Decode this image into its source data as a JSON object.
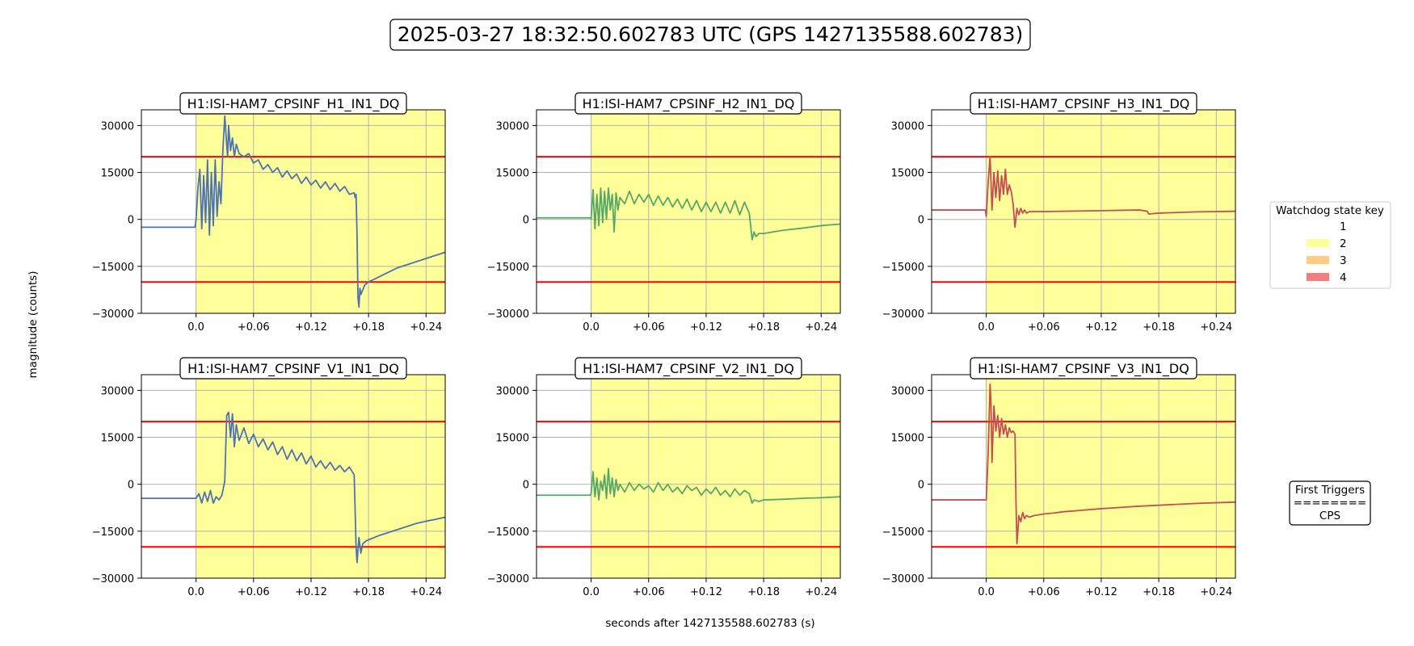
{
  "figure": {
    "title": "2025-03-27 18:32:50.602783 UTC (GPS 1427135588.602783)",
    "xlabel": "seconds after 1427135588.602783 (s)",
    "ylabel": "magnitude (counts)"
  },
  "legend": {
    "title": "Watchdog state key",
    "placement": "right",
    "entries": [
      {
        "label": "1",
        "color": "#ffffff"
      },
      {
        "label": "2",
        "color": "#ffff99"
      },
      {
        "label": "3",
        "color": "#ffcc80"
      },
      {
        "label": "4",
        "color": "#f08080"
      }
    ]
  },
  "first_triggers": {
    "title": "First Triggers",
    "separator": "========",
    "value": "CPS"
  },
  "chart_data": [
    {
      "type": "line",
      "title": "H1:ISI-HAM7_CPSINF_H1_IN1_DQ",
      "color": "#4c72b0",
      "xlim": [
        -0.057,
        0.26
      ],
      "ylim": [
        -30000,
        35000
      ],
      "xticks": [
        0.0,
        0.06,
        0.12,
        0.18,
        0.24
      ],
      "xtick_labels": [
        "0.0",
        "+0.06",
        "+0.12",
        "+0.18",
        "+0.24"
      ],
      "yticks": [
        30000,
        15000,
        0,
        -15000,
        -30000
      ],
      "ytick_labels": [
        "30000",
        "15000",
        "0",
        "−15000",
        "−30000"
      ],
      "thresholds": [
        20000,
        -20000
      ],
      "state_span": {
        "start": 0.0,
        "end": 0.26,
        "state": "2"
      },
      "x": [
        -0.057,
        -0.001,
        0.0,
        0.002,
        0.004,
        0.006,
        0.008,
        0.01,
        0.012,
        0.014,
        0.016,
        0.018,
        0.02,
        0.022,
        0.024,
        0.026,
        0.028,
        0.03,
        0.032,
        0.033,
        0.034,
        0.036,
        0.038,
        0.04,
        0.042,
        0.045,
        0.05,
        0.055,
        0.06,
        0.065,
        0.07,
        0.075,
        0.08,
        0.085,
        0.09,
        0.095,
        0.1,
        0.105,
        0.11,
        0.115,
        0.12,
        0.125,
        0.13,
        0.135,
        0.14,
        0.145,
        0.15,
        0.155,
        0.16,
        0.165,
        0.166,
        0.167,
        0.168,
        0.169,
        0.17,
        0.171,
        0.172,
        0.174,
        0.176,
        0.18,
        0.19,
        0.2,
        0.21,
        0.22,
        0.23,
        0.24,
        0.25,
        0.26
      ],
      "y": [
        -2500,
        -2500,
        0,
        10000,
        16000,
        -3000,
        14000,
        -1000,
        19000,
        -5000,
        15000,
        -2000,
        19000,
        1000,
        12000,
        5000,
        22000,
        33000,
        24000,
        20000,
        30000,
        22000,
        26000,
        20000,
        24000,
        21000,
        20000,
        21000,
        18000,
        19000,
        16000,
        17500,
        15000,
        16500,
        13500,
        15500,
        13000,
        14500,
        11500,
        13500,
        11000,
        12500,
        10000,
        12000,
        9500,
        11500,
        9000,
        10500,
        8000,
        8500,
        7000,
        8000,
        -5000,
        -25000,
        -28000,
        -22000,
        -24000,
        -22500,
        -21000,
        -20000,
        -18500,
        -17000,
        -15500,
        -14500,
        -13500,
        -12500,
        -11500,
        -10500
      ]
    },
    {
      "type": "line",
      "title": "H1:ISI-HAM7_CPSINF_H2_IN1_DQ",
      "color": "#55a868",
      "xlim": [
        -0.057,
        0.26
      ],
      "ylim": [
        -30000,
        35000
      ],
      "xticks": [
        0.0,
        0.06,
        0.12,
        0.18,
        0.24
      ],
      "xtick_labels": [
        "0.0",
        "+0.06",
        "+0.12",
        "+0.18",
        "+0.24"
      ],
      "yticks": [
        30000,
        15000,
        0,
        -15000,
        -30000
      ],
      "ytick_labels": [
        "30000",
        "15000",
        "0",
        "−15000",
        "−30000"
      ],
      "thresholds": [
        20000,
        -20000
      ],
      "state_span": {
        "start": 0.0,
        "end": 0.26,
        "state": "2"
      },
      "x": [
        -0.057,
        -0.001,
        0.0,
        0.002,
        0.004,
        0.006,
        0.008,
        0.01,
        0.012,
        0.014,
        0.016,
        0.018,
        0.02,
        0.022,
        0.024,
        0.026,
        0.028,
        0.03,
        0.035,
        0.04,
        0.045,
        0.05,
        0.055,
        0.06,
        0.065,
        0.07,
        0.075,
        0.08,
        0.085,
        0.09,
        0.095,
        0.1,
        0.105,
        0.11,
        0.115,
        0.12,
        0.125,
        0.13,
        0.135,
        0.14,
        0.145,
        0.15,
        0.155,
        0.16,
        0.165,
        0.168,
        0.17,
        0.172,
        0.175,
        0.18,
        0.2,
        0.22,
        0.24,
        0.26
      ],
      "y": [
        500,
        500,
        200,
        9500,
        -3000,
        8000,
        -2000,
        10000,
        -1000,
        9000,
        0,
        10000,
        3000,
        8000,
        -4000,
        8500,
        3000,
        7000,
        5000,
        9000,
        5000,
        8000,
        5500,
        8000,
        4500,
        7500,
        4500,
        7000,
        4000,
        6500,
        3500,
        6500,
        3000,
        6000,
        2500,
        5500,
        2500,
        5500,
        2000,
        5500,
        2000,
        6000,
        1500,
        5500,
        2000,
        -6500,
        -4000,
        -5500,
        -4500,
        -4500,
        -3500,
        -2800,
        -2000,
        -1500
      ]
    },
    {
      "type": "line",
      "title": "H1:ISI-HAM7_CPSINF_H3_IN1_DQ",
      "color": "#c44e52",
      "xlim": [
        -0.057,
        0.26
      ],
      "ylim": [
        -30000,
        35000
      ],
      "xticks": [
        0.0,
        0.06,
        0.12,
        0.18,
        0.24
      ],
      "xtick_labels": [
        "0.0",
        "+0.06",
        "+0.12",
        "+0.18",
        "+0.24"
      ],
      "yticks": [
        30000,
        15000,
        0,
        -15000,
        -30000
      ],
      "ytick_labels": [
        "30000",
        "15000",
        "0",
        "−15000",
        "−30000"
      ],
      "thresholds": [
        20000,
        -20000
      ],
      "state_span": {
        "start": 0.0,
        "end": 0.26,
        "state": "2"
      },
      "x": [
        -0.057,
        -0.001,
        0.0,
        0.002,
        0.004,
        0.006,
        0.008,
        0.01,
        0.012,
        0.014,
        0.016,
        0.018,
        0.02,
        0.022,
        0.024,
        0.026,
        0.028,
        0.03,
        0.032,
        0.034,
        0.036,
        0.038,
        0.04,
        0.042,
        0.045,
        0.05,
        0.06,
        0.08,
        0.1,
        0.12,
        0.14,
        0.16,
        0.168,
        0.169,
        0.17,
        0.172,
        0.18,
        0.2,
        0.22,
        0.24,
        0.26
      ],
      "y": [
        3000,
        3000,
        1000,
        12000,
        20000,
        3000,
        15000,
        7000,
        15500,
        6000,
        14000,
        8000,
        16000,
        8000,
        11000,
        9000,
        5000,
        -2500,
        3500,
        1500,
        3500,
        2000,
        3000,
        2000,
        2500,
        2500,
        2500,
        2600,
        2700,
        2800,
        2900,
        3000,
        2600,
        2000,
        1700,
        1800,
        2000,
        2200,
        2400,
        2500,
        2600
      ]
    },
    {
      "type": "line",
      "title": "H1:ISI-HAM7_CPSINF_V1_IN1_DQ",
      "color": "#4c72b0",
      "xlim": [
        -0.057,
        0.26
      ],
      "ylim": [
        -30000,
        35000
      ],
      "xticks": [
        0.0,
        0.06,
        0.12,
        0.18,
        0.24
      ],
      "xtick_labels": [
        "0.0",
        "+0.06",
        "+0.12",
        "+0.18",
        "+0.24"
      ],
      "yticks": [
        30000,
        15000,
        0,
        -15000,
        -30000
      ],
      "ytick_labels": [
        "30000",
        "15000",
        "0",
        "−15000",
        "−30000"
      ],
      "thresholds": [
        20000,
        -20000
      ],
      "state_span": {
        "start": 0.0,
        "end": 0.26,
        "state": "2"
      },
      "x": [
        -0.057,
        -0.001,
        0.0,
        0.003,
        0.006,
        0.009,
        0.012,
        0.015,
        0.018,
        0.021,
        0.024,
        0.027,
        0.03,
        0.032,
        0.034,
        0.036,
        0.038,
        0.04,
        0.042,
        0.045,
        0.05,
        0.055,
        0.06,
        0.065,
        0.07,
        0.075,
        0.08,
        0.085,
        0.09,
        0.095,
        0.1,
        0.105,
        0.11,
        0.115,
        0.12,
        0.125,
        0.13,
        0.135,
        0.14,
        0.145,
        0.15,
        0.155,
        0.16,
        0.165,
        0.166,
        0.167,
        0.168,
        0.17,
        0.172,
        0.174,
        0.178,
        0.19,
        0.2,
        0.21,
        0.22,
        0.23,
        0.24,
        0.25,
        0.26
      ],
      "y": [
        -4500,
        -4500,
        -4500,
        -3000,
        -6000,
        -2500,
        -5500,
        -2000,
        -6000,
        -4000,
        -5000,
        -3500,
        1000,
        22000,
        23000,
        15000,
        22500,
        12000,
        19000,
        14000,
        18000,
        13000,
        16000,
        12000,
        14500,
        11000,
        13500,
        9500,
        12000,
        8000,
        11000,
        7500,
        10000,
        6500,
        9000,
        5500,
        7500,
        5000,
        7000,
        4500,
        6000,
        4000,
        5500,
        3000,
        -8000,
        -20000,
        -25000,
        -17000,
        -22000,
        -19000,
        -18000,
        -16500,
        -15500,
        -14500,
        -13500,
        -12500,
        -11800,
        -11200,
        -10500
      ]
    },
    {
      "type": "line",
      "title": "H1:ISI-HAM7_CPSINF_V2_IN1_DQ",
      "color": "#55a868",
      "xlim": [
        -0.057,
        0.26
      ],
      "ylim": [
        -30000,
        35000
      ],
      "xticks": [
        0.0,
        0.06,
        0.12,
        0.18,
        0.24
      ],
      "xtick_labels": [
        "0.0",
        "+0.06",
        "+0.12",
        "+0.18",
        "+0.24"
      ],
      "yticks": [
        30000,
        15000,
        0,
        -15000,
        -30000
      ],
      "ytick_labels": [
        "30000",
        "15000",
        "0",
        "−15000",
        "−30000"
      ],
      "thresholds": [
        20000,
        -20000
      ],
      "state_span": {
        "start": 0.0,
        "end": 0.26,
        "state": "2"
      },
      "x": [
        -0.057,
        -0.001,
        0.0,
        0.002,
        0.004,
        0.006,
        0.008,
        0.01,
        0.012,
        0.014,
        0.016,
        0.018,
        0.02,
        0.022,
        0.024,
        0.026,
        0.028,
        0.03,
        0.035,
        0.04,
        0.045,
        0.05,
        0.055,
        0.06,
        0.065,
        0.07,
        0.075,
        0.08,
        0.085,
        0.09,
        0.095,
        0.1,
        0.105,
        0.11,
        0.115,
        0.12,
        0.125,
        0.13,
        0.135,
        0.14,
        0.145,
        0.15,
        0.155,
        0.16,
        0.165,
        0.168,
        0.17,
        0.175,
        0.18,
        0.2,
        0.22,
        0.24,
        0.26
      ],
      "y": [
        -3500,
        -3500,
        -3000,
        4000,
        -4000,
        2000,
        -5000,
        1000,
        -2000,
        3000,
        -4500,
        5000,
        -3000,
        2000,
        -4000,
        1500,
        -2000,
        0,
        -2500,
        500,
        -2000,
        0,
        -1500,
        -500,
        -2500,
        500,
        -2000,
        0,
        -2500,
        -1000,
        -3000,
        -500,
        -2000,
        -1000,
        -3500,
        -1500,
        -3000,
        -1000,
        -3500,
        -2000,
        -4000,
        -1500,
        -3500,
        -2000,
        -3000,
        -6000,
        -5000,
        -5500,
        -5000,
        -4800,
        -4500,
        -4300,
        -4000
      ]
    },
    {
      "type": "line",
      "title": "H1:ISI-HAM7_CPSINF_V3_IN1_DQ",
      "color": "#c44e52",
      "xlim": [
        -0.057,
        0.26
      ],
      "ylim": [
        -30000,
        35000
      ],
      "xticks": [
        0.0,
        0.06,
        0.12,
        0.18,
        0.24
      ],
      "xtick_labels": [
        "0.0",
        "+0.06",
        "+0.12",
        "+0.18",
        "+0.24"
      ],
      "yticks": [
        30000,
        15000,
        0,
        -15000,
        -30000
      ],
      "ytick_labels": [
        "30000",
        "15000",
        "0",
        "−15000",
        "−30000"
      ],
      "thresholds": [
        20000,
        -20000
      ],
      "state_span": {
        "start": 0.0,
        "end": 0.26,
        "state": "2"
      },
      "x": [
        -0.057,
        -0.001,
        0.0,
        0.002,
        0.004,
        0.005,
        0.006,
        0.008,
        0.01,
        0.012,
        0.014,
        0.016,
        0.018,
        0.02,
        0.022,
        0.024,
        0.026,
        0.028,
        0.03,
        0.031,
        0.032,
        0.033,
        0.034,
        0.036,
        0.038,
        0.04,
        0.042,
        0.045,
        0.05,
        0.06,
        0.07,
        0.08,
        0.1,
        0.12,
        0.14,
        0.16,
        0.18,
        0.2,
        0.22,
        0.24,
        0.26
      ],
      "y": [
        -5000,
        -5000,
        -5000,
        10000,
        32000,
        25000,
        7000,
        25000,
        17000,
        22000,
        15000,
        21000,
        16000,
        19000,
        15000,
        18000,
        16500,
        17000,
        16000,
        -5000,
        -19000,
        -15000,
        -10000,
        -12000,
        -9000,
        -11000,
        -10000,
        -10500,
        -10000,
        -9500,
        -9200,
        -8800,
        -8300,
        -7800,
        -7400,
        -7000,
        -6700,
        -6400,
        -6100,
        -5900,
        -5700
      ]
    }
  ]
}
